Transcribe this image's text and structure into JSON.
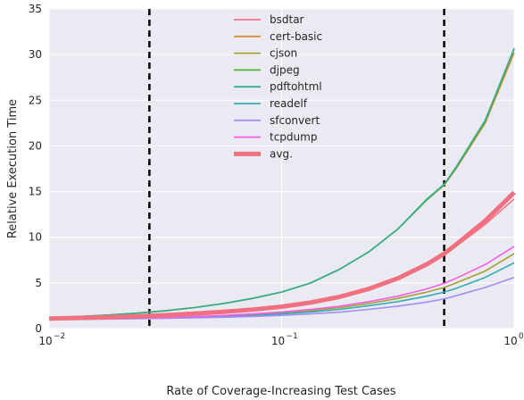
{
  "chart_data": {
    "type": "line",
    "title": "",
    "xlabel": "Rate of Coverage-Increasing Test Cases",
    "ylabel": "Relative Execution Time",
    "xscale": "log",
    "xlim": [
      0.01,
      1
    ],
    "ylim": [
      0,
      35
    ],
    "x_ticks": [
      0.01,
      0.1,
      1
    ],
    "x_tick_labels": [
      "10",
      "10",
      "10"
    ],
    "x_tick_exponents": [
      "−2",
      "−1",
      "0"
    ],
    "y_ticks": [
      0,
      5,
      10,
      15,
      20,
      25,
      30,
      35
    ],
    "y_tick_labels": [
      "0",
      "5",
      "10",
      "15",
      "20",
      "25",
      "30",
      "35"
    ],
    "grid": true,
    "background": "#EAEAF2",
    "legend_position": "top-center",
    "vertical_lines": [
      0.027,
      0.5
    ],
    "x": [
      0.01,
      0.0133,
      0.0178,
      0.0237,
      0.0316,
      0.0422,
      0.0562,
      0.075,
      0.1,
      0.1334,
      0.1778,
      0.2371,
      0.3162,
      0.4217,
      0.5,
      0.5623,
      0.75,
      1.0
    ],
    "series": [
      {
        "name": "bsdtar",
        "color": "#f77189",
        "values": [
          1.1,
          1.15,
          1.22,
          1.3,
          1.4,
          1.52,
          1.7,
          1.95,
          2.3,
          2.8,
          3.45,
          4.4,
          5.6,
          7.1,
          8.1,
          9.0,
          11.4,
          14.2
        ]
      },
      {
        "name": "cert-basic",
        "color": "#d58c32",
        "values": [
          1.2,
          1.32,
          1.48,
          1.68,
          1.95,
          2.3,
          2.75,
          3.3,
          4.0,
          5.0,
          6.5,
          8.4,
          10.9,
          14.1,
          15.7,
          17.5,
          22.5,
          30.2
        ]
      },
      {
        "name": "cjson",
        "color": "#a4a031",
        "values": [
          1.0,
          1.03,
          1.07,
          1.12,
          1.18,
          1.26,
          1.36,
          1.5,
          1.7,
          1.95,
          2.3,
          2.75,
          3.3,
          4.0,
          4.5,
          5.0,
          6.3,
          8.2
        ]
      },
      {
        "name": "djpeg",
        "color": "#50b131",
        "values": [
          1.2,
          1.32,
          1.48,
          1.68,
          1.95,
          2.3,
          2.75,
          3.3,
          4.0,
          5.0,
          6.5,
          8.4,
          10.9,
          14.1,
          15.8,
          17.6,
          22.7,
          30.6
        ]
      },
      {
        "name": "pdftohtml",
        "color": "#34ae91",
        "values": [
          1.2,
          1.32,
          1.48,
          1.68,
          1.95,
          2.3,
          2.75,
          3.3,
          4.0,
          5.0,
          6.5,
          8.4,
          10.9,
          14.2,
          15.8,
          17.7,
          22.8,
          30.7
        ]
      },
      {
        "name": "readelf",
        "color": "#37abb5",
        "values": [
          1.0,
          1.03,
          1.06,
          1.1,
          1.15,
          1.22,
          1.31,
          1.43,
          1.6,
          1.82,
          2.1,
          2.5,
          2.95,
          3.55,
          4.0,
          4.4,
          5.6,
          7.2
        ]
      },
      {
        "name": "sfconvert",
        "color": "#a48cf4",
        "values": [
          1.0,
          1.02,
          1.05,
          1.08,
          1.12,
          1.17,
          1.24,
          1.33,
          1.45,
          1.6,
          1.8,
          2.1,
          2.45,
          2.9,
          3.25,
          3.6,
          4.5,
          5.6
        ]
      },
      {
        "name": "tcpdump",
        "color": "#f45deb",
        "values": [
          1.0,
          1.04,
          1.09,
          1.15,
          1.22,
          1.32,
          1.44,
          1.6,
          1.82,
          2.1,
          2.45,
          2.95,
          3.55,
          4.35,
          4.95,
          5.5,
          7.0,
          9.0
        ]
      },
      {
        "name": "avg.",
        "color": "#f0707f",
        "width": 5,
        "values": [
          1.1,
          1.16,
          1.24,
          1.34,
          1.47,
          1.63,
          1.83,
          2.08,
          2.4,
          2.85,
          3.48,
          4.35,
          5.5,
          7.05,
          8.2,
          9.2,
          11.8,
          14.9
        ]
      }
    ]
  }
}
